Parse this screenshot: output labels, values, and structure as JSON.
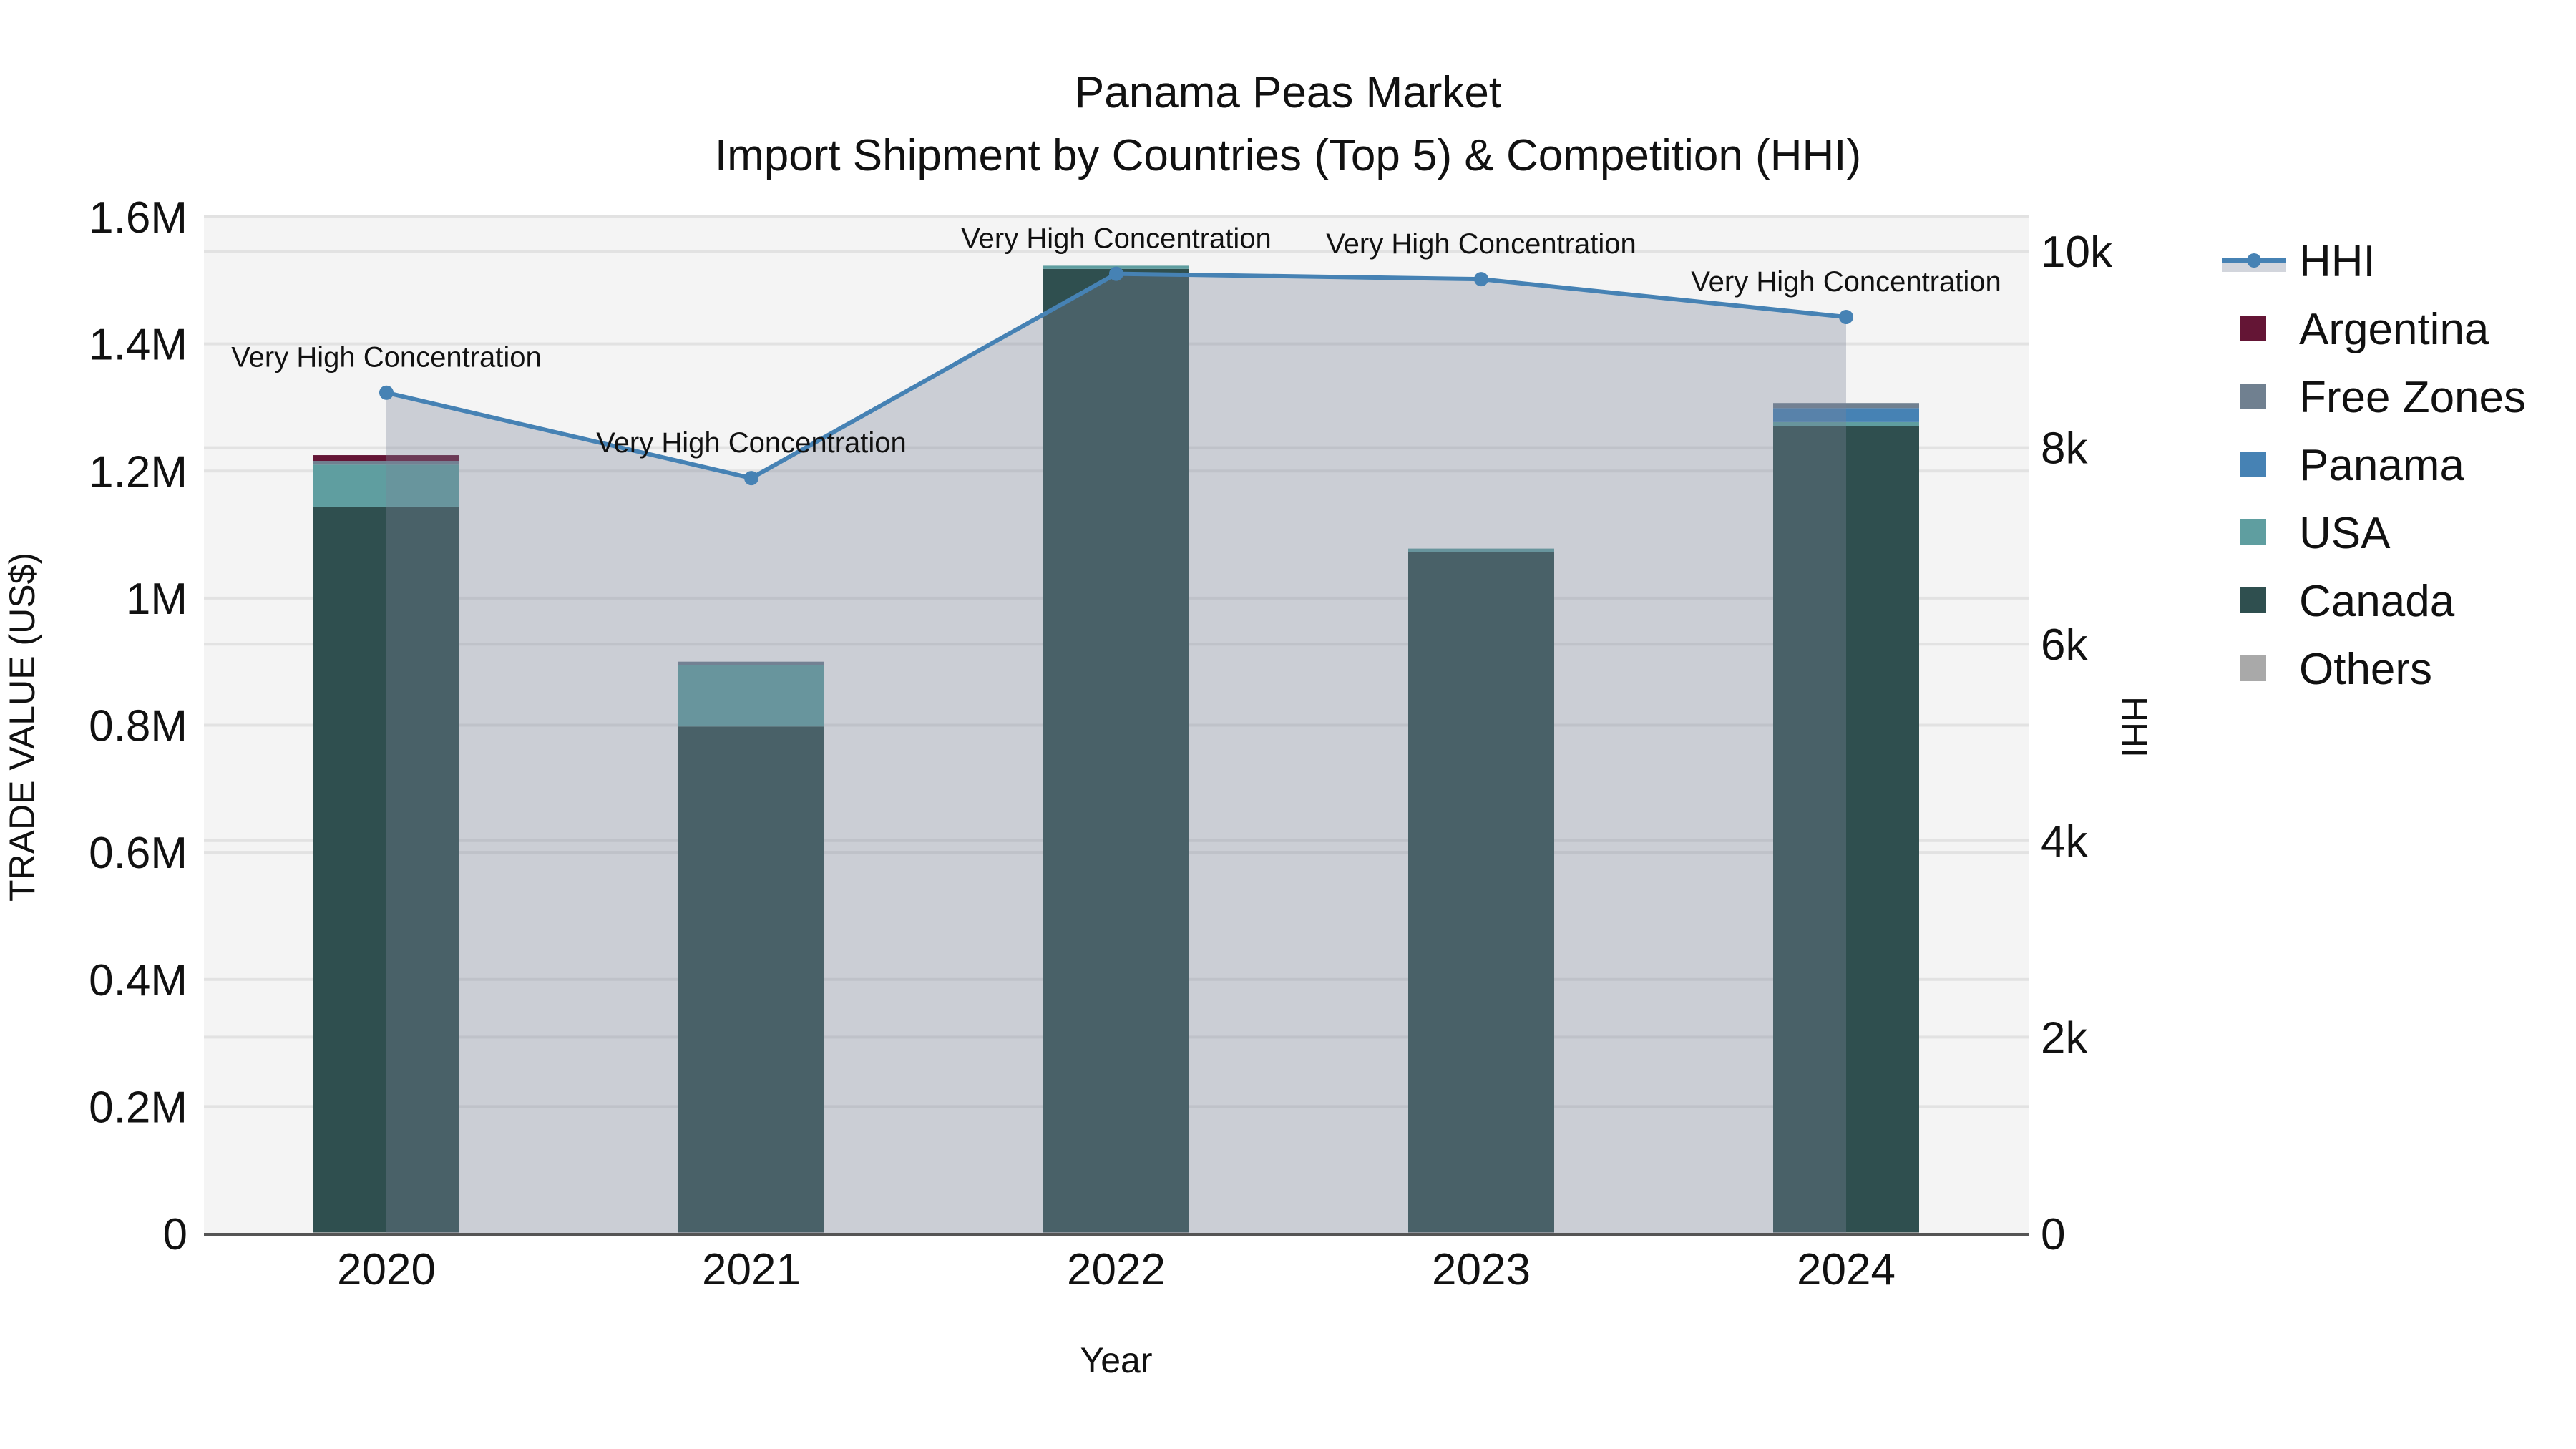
{
  "title": {
    "line1": "Panama Peas Market",
    "line2": "Import Shipment by Countries (Top 5) & Competition (HHI)"
  },
  "axes": {
    "x_title": "Year",
    "y_left_title": "TRADE VALUE (US$)",
    "y_right_title": "HHI",
    "y_left_ticks": [
      "0",
      "0.2M",
      "0.4M",
      "0.6M",
      "0.8M",
      "1M",
      "1.2M",
      "1.4M",
      "1.6M"
    ],
    "y_right_ticks": [
      "0",
      "2k",
      "4k",
      "6k",
      "8k",
      "10k"
    ],
    "x_ticks": [
      "2020",
      "2021",
      "2022",
      "2023",
      "2024"
    ]
  },
  "legend": {
    "items": [
      {
        "label": "HHI",
        "type": "line",
        "color": "#4682B4"
      },
      {
        "label": "Argentina",
        "type": "box",
        "color": "#641535"
      },
      {
        "label": "Free Zones",
        "type": "box",
        "color": "#708090"
      },
      {
        "label": "Panama",
        "type": "box",
        "color": "#4682B4"
      },
      {
        "label": "USA",
        "type": "box",
        "color": "#5F9EA0"
      },
      {
        "label": "Canada",
        "type": "box",
        "color": "#2F4F4F"
      },
      {
        "label": "Others",
        "type": "box",
        "color": "#A9A9A9"
      }
    ]
  },
  "annotations": [
    {
      "year": "2020",
      "text": "Very High Concentration"
    },
    {
      "year": "2021",
      "text": "Very High Concentration"
    },
    {
      "year": "2022",
      "text": "Very High Concentration"
    },
    {
      "year": "2023",
      "text": "Very High Concentration"
    },
    {
      "year": "2024",
      "text": "Very High Concentration"
    }
  ],
  "chart_data": {
    "type": "bar",
    "subtype": "stacked bar + line (secondary axis, area fill)",
    "title": "Panama Peas Market — Import Shipment by Countries (Top 5) & Competition (HHI)",
    "xlabel": "Year",
    "ylabel": "TRADE VALUE (US$)",
    "y2label": "HHI",
    "categories": [
      "2020",
      "2021",
      "2022",
      "2023",
      "2024"
    ],
    "ylim": [
      0,
      1600000
    ],
    "y2lim": [
      0,
      10350
    ],
    "grid": true,
    "legend_position": "right",
    "stack_order_bottom_to_top": [
      "Others",
      "Canada",
      "USA",
      "Panama",
      "Free Zones",
      "Argentina"
    ],
    "series": [
      {
        "name": "Others",
        "color": "#A9A9A9",
        "axis": "y",
        "values": [
          2000,
          2000,
          2000,
          2000,
          2000
        ]
      },
      {
        "name": "Canada",
        "color": "#2F4F4F",
        "axis": "y",
        "values": [
          1142000,
          796000,
          1516000,
          1071000,
          1269000
        ]
      },
      {
        "name": "USA",
        "color": "#5F9EA0",
        "axis": "y",
        "values": [
          66000,
          97000,
          5000,
          5000,
          6000
        ]
      },
      {
        "name": "Panama",
        "color": "#4682B4",
        "axis": "y",
        "values": [
          0,
          0,
          0,
          0,
          22000
        ]
      },
      {
        "name": "Free Zones",
        "color": "#708090",
        "axis": "y",
        "values": [
          6000,
          5000,
          0,
          0,
          8000
        ]
      },
      {
        "name": "Argentina",
        "color": "#641535",
        "axis": "y",
        "values": [
          9000,
          0,
          0,
          0,
          0
        ]
      },
      {
        "name": "HHI",
        "color": "#4682B4",
        "axis": "y2",
        "type": "line",
        "fill": "tozeroy",
        "values": [
          8560,
          7690,
          9770,
          9715,
          9330
        ]
      }
    ],
    "annotations": [
      "Very High Concentration",
      "Very High Concentration",
      "Very High Concentration",
      "Very High Concentration",
      "Very High Concentration"
    ]
  }
}
